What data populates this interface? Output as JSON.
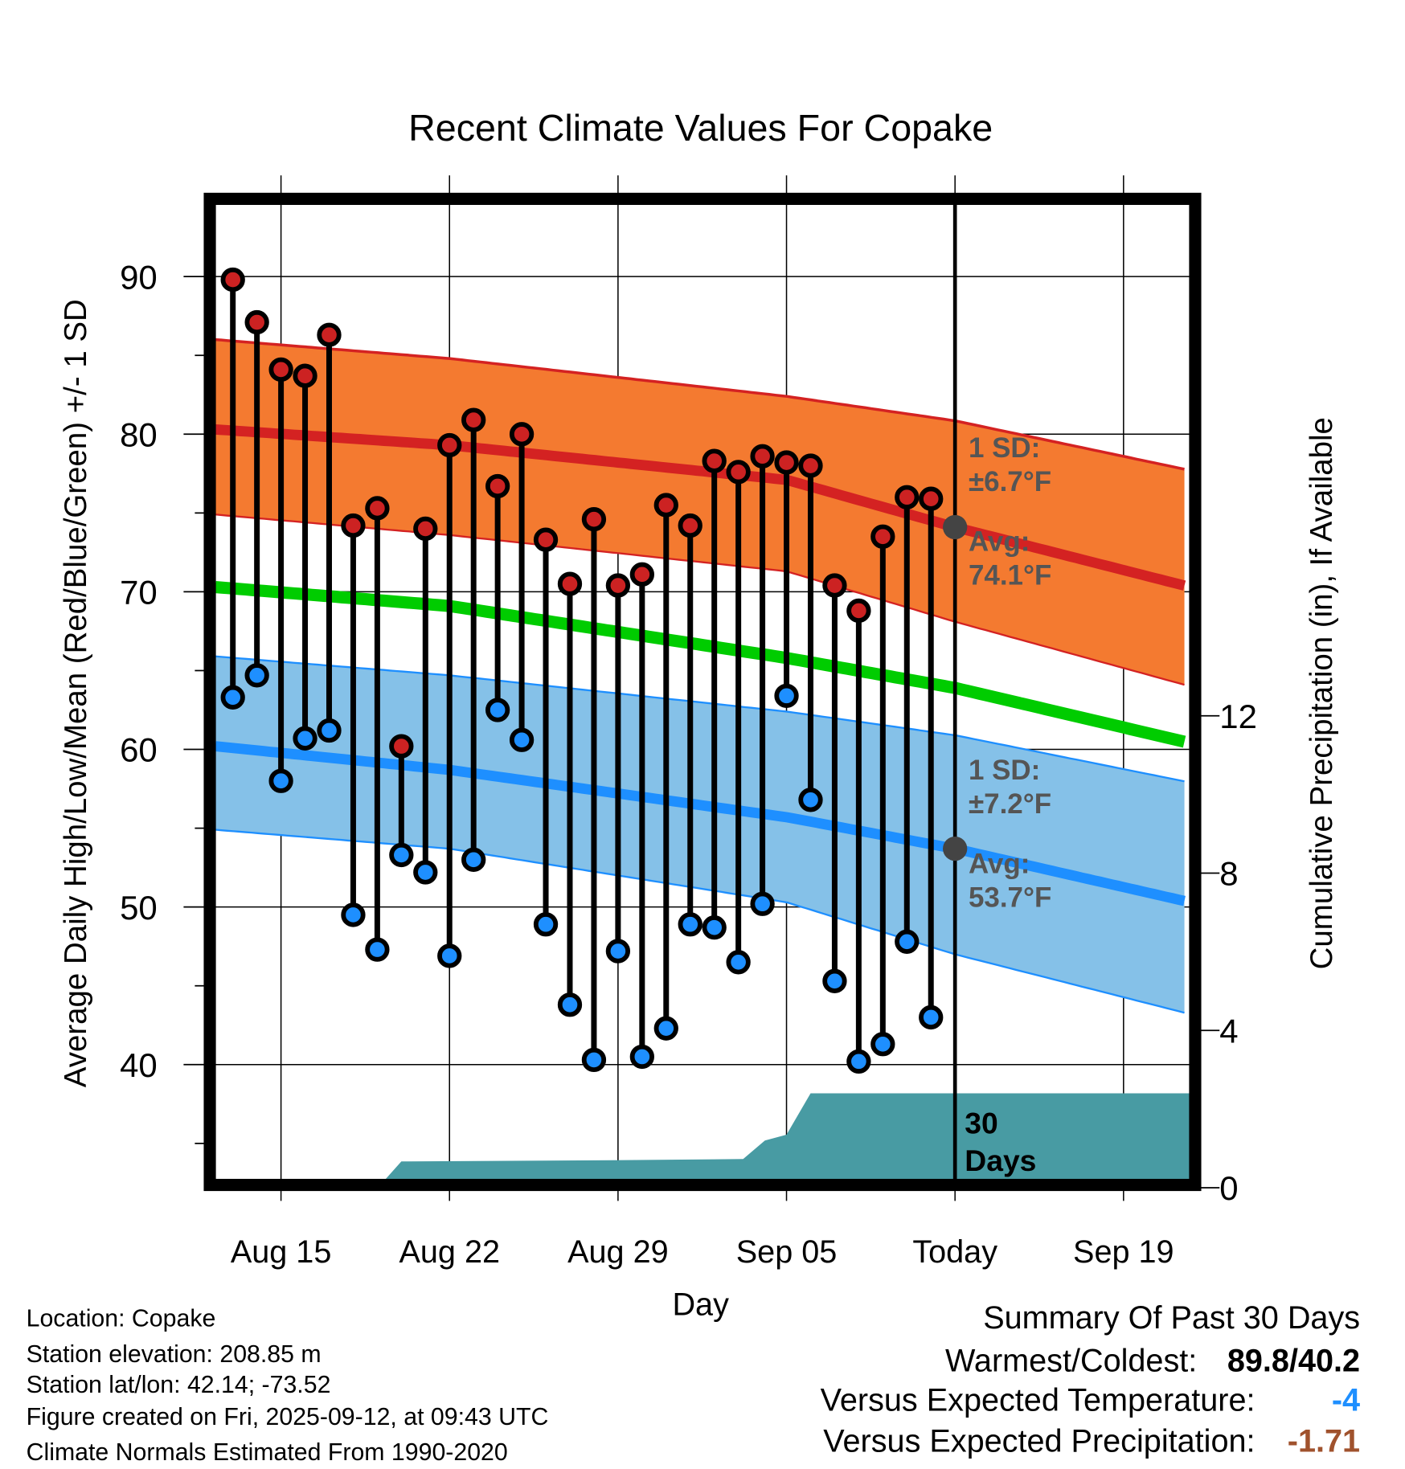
{
  "chart_data": {
    "type": "line",
    "title": "Recent Climate Values For Copake",
    "xlabel": "Day",
    "ylabel": "Average Daily High/Low/Mean (Red/Blue/Green) +/- 1 SD",
    "ylabel_right": "Cumulative Precipitation (in), If Available",
    "ylim": [
      32.7,
      94.6
    ],
    "ylim_right": [
      0,
      25
    ],
    "y_ticks": [
      40,
      50,
      60,
      70,
      80,
      90
    ],
    "y_right_ticks": [
      0,
      4,
      8,
      12
    ],
    "x_ticks": [
      {
        "day": 0,
        "label": "Aug 15"
      },
      {
        "day": 7,
        "label": "Aug 22"
      },
      {
        "day": 14,
        "label": "Aug 29"
      },
      {
        "day": 21,
        "label": "Sep 05"
      },
      {
        "day": 28,
        "label": "Today"
      },
      {
        "day": 35,
        "label": "Sep 19"
      }
    ],
    "x_range_days_from_aug15": [
      -2.72,
      37.77
    ],
    "grid": true,
    "observations": {
      "start_day": -2,
      "highs": [
        89.8,
        87.1,
        84.1,
        83.7,
        86.3,
        74.2,
        75.3,
        60.2,
        74.0,
        79.3,
        80.9,
        76.7,
        80.0,
        73.3,
        70.5,
        74.6,
        70.4,
        71.1,
        75.5,
        74.2,
        78.3,
        77.6,
        78.6,
        78.2,
        78.0,
        70.4,
        68.8,
        73.5,
        76.0,
        75.9
      ],
      "lows": [
        63.3,
        64.7,
        58.0,
        60.7,
        61.2,
        49.5,
        47.3,
        53.3,
        52.2,
        46.9,
        53.0,
        62.5,
        60.6,
        48.9,
        43.8,
        40.3,
        47.2,
        40.5,
        42.3,
        48.9,
        48.7,
        46.5,
        50.2,
        63.4,
        56.8,
        45.3,
        40.2,
        41.3,
        47.8,
        43.0
      ]
    },
    "normals": {
      "days": [
        -2.72,
        7,
        21,
        28,
        37.77
      ],
      "high_mean": [
        80.3,
        79.3,
        77.1,
        74.1,
        70.3
      ],
      "high_upper": [
        86.0,
        84.8,
        82.4,
        80.85,
        77.7
      ],
      "high_lower": [
        74.9,
        73.6,
        71.3,
        68.1,
        64.0
      ],
      "low_mean": [
        60.2,
        58.7,
        55.7,
        53.7,
        50.3
      ],
      "low_upper": [
        65.9,
        64.7,
        62.4,
        60.9,
        57.9
      ],
      "low_lower": [
        54.9,
        53.7,
        50.3,
        47.0,
        43.2
      ],
      "mean": [
        70.3,
        69.1,
        65.8,
        63.9,
        60.4
      ]
    },
    "precip_cumulative": {
      "days": [
        -2.72,
        4.3,
        5.0,
        13.8,
        19.2,
        20.1,
        21.0,
        22.0,
        37.77
      ],
      "values": [
        0,
        0,
        0.67,
        0.7,
        0.73,
        1.2,
        1.35,
        2.4,
        2.4
      ]
    },
    "annotations": {
      "high_sd_label": "1 SD:",
      "high_sd_value": "±6.7°F",
      "high_avg_label": "Avg:",
      "high_avg_value": "74.1°F",
      "low_sd_label": "1 SD:",
      "low_sd_value": "±7.2°F",
      "low_avg_label": "Avg:",
      "low_avg_value": "53.7°F",
      "today_high_mean": 74.1,
      "today_low_mean": 53.7,
      "period_line1": "30",
      "period_line2": "Days"
    },
    "colors": {
      "high_band": "#F47A30",
      "high_line": "#D42222",
      "mean_line": "#00CC00",
      "low_band": "#85C1E8",
      "low_line": "#1E8FFF",
      "precip": "#489BA3",
      "high_dot": "#CC2222",
      "low_dot": "#1E8FFF",
      "annotation": "#555555"
    }
  },
  "footer": {
    "location": "Location: Copake",
    "elevation": "Station elevation: 208.85 m",
    "latlon": "Station lat/lon: 42.14; -73.52",
    "created": "Figure created on Fri, 2025-09-12, at 09:43 UTC",
    "normals": "Climate Normals Estimated From 1990-2020"
  },
  "summary": {
    "title": "Summary Of Past 30 Days",
    "warmest_label": "Warmest/Coldest:",
    "warmest_value": "89.8/40.2",
    "temp_label": "Versus Expected Temperature:",
    "temp_value": "-4",
    "temp_color": "#1E8FFF",
    "precip_label": "Versus Expected Precipitation:",
    "precip_value": "-1.71",
    "precip_color": "#A0522D"
  }
}
